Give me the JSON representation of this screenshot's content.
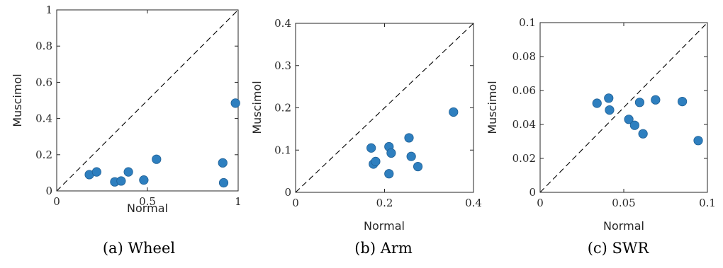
{
  "colors": {
    "point": "#2e7fbf",
    "point_edge": "#1f5f94",
    "axis": "#262626",
    "diagonal": "#000000"
  },
  "chart_data": [
    {
      "type": "scatter",
      "caption": "(a) Wheel",
      "xlabel": "Normal",
      "ylabel": "Muscimol",
      "xlim": [
        0,
        1
      ],
      "ylim": [
        0,
        1
      ],
      "xticks": [
        "0",
        "0.5",
        "1"
      ],
      "yticks": [
        "0",
        "0.2",
        "0.4",
        "0.6",
        "0.8",
        "1"
      ],
      "xtick_values": [
        0,
        0.5,
        1
      ],
      "ytick_values": [
        0,
        0.2,
        0.4,
        0.6,
        0.8,
        1
      ],
      "diagonal": true,
      "grid": false,
      "points": [
        {
          "x": 0.18,
          "y": 0.09
        },
        {
          "x": 0.22,
          "y": 0.105
        },
        {
          "x": 0.32,
          "y": 0.05
        },
        {
          "x": 0.355,
          "y": 0.055
        },
        {
          "x": 0.395,
          "y": 0.105
        },
        {
          "x": 0.48,
          "y": 0.06
        },
        {
          "x": 0.55,
          "y": 0.175
        },
        {
          "x": 0.915,
          "y": 0.155
        },
        {
          "x": 0.92,
          "y": 0.045
        },
        {
          "x": 0.985,
          "y": 0.485
        }
      ]
    },
    {
      "type": "scatter",
      "caption": "(b) Arm",
      "xlabel": "Normal",
      "ylabel": "Muscimol",
      "xlim": [
        0,
        0.4
      ],
      "ylim": [
        0,
        0.4
      ],
      "xticks": [
        "0",
        "0.2",
        "0.4"
      ],
      "yticks": [
        "0",
        "0.1",
        "0.2",
        "0.3",
        "0.4"
      ],
      "xtick_values": [
        0,
        0.2,
        0.4
      ],
      "ytick_values": [
        0,
        0.1,
        0.2,
        0.3,
        0.4
      ],
      "diagonal": true,
      "grid": false,
      "points": [
        {
          "x": 0.17,
          "y": 0.105
        },
        {
          "x": 0.175,
          "y": 0.067
        },
        {
          "x": 0.18,
          "y": 0.073
        },
        {
          "x": 0.21,
          "y": 0.108
        },
        {
          "x": 0.215,
          "y": 0.093
        },
        {
          "x": 0.21,
          "y": 0.044
        },
        {
          "x": 0.255,
          "y": 0.129
        },
        {
          "x": 0.26,
          "y": 0.085
        },
        {
          "x": 0.275,
          "y": 0.061
        },
        {
          "x": 0.355,
          "y": 0.19
        }
      ]
    },
    {
      "type": "scatter",
      "caption": "(c) SWR",
      "xlabel": "Normal",
      "ylabel": "Muscimol",
      "xlim": [
        0,
        0.1
      ],
      "ylim": [
        0,
        0.1
      ],
      "xticks": [
        "0",
        "0.05",
        "0.1"
      ],
      "yticks": [
        "0",
        "0.02",
        "0.04",
        "0.06",
        "0.08",
        "0.1"
      ],
      "xtick_values": [
        0,
        0.05,
        0.1
      ],
      "ytick_values": [
        0,
        0.02,
        0.04,
        0.06,
        0.08,
        0.1
      ],
      "diagonal": true,
      "grid": false,
      "points": [
        {
          "x": 0.034,
          "y": 0.0525
        },
        {
          "x": 0.041,
          "y": 0.0555
        },
        {
          "x": 0.0415,
          "y": 0.0485
        },
        {
          "x": 0.053,
          "y": 0.043
        },
        {
          "x": 0.0565,
          "y": 0.0395
        },
        {
          "x": 0.0595,
          "y": 0.053
        },
        {
          "x": 0.0615,
          "y": 0.0345
        },
        {
          "x": 0.069,
          "y": 0.0545
        },
        {
          "x": 0.085,
          "y": 0.0535
        },
        {
          "x": 0.0945,
          "y": 0.0305
        }
      ]
    }
  ]
}
